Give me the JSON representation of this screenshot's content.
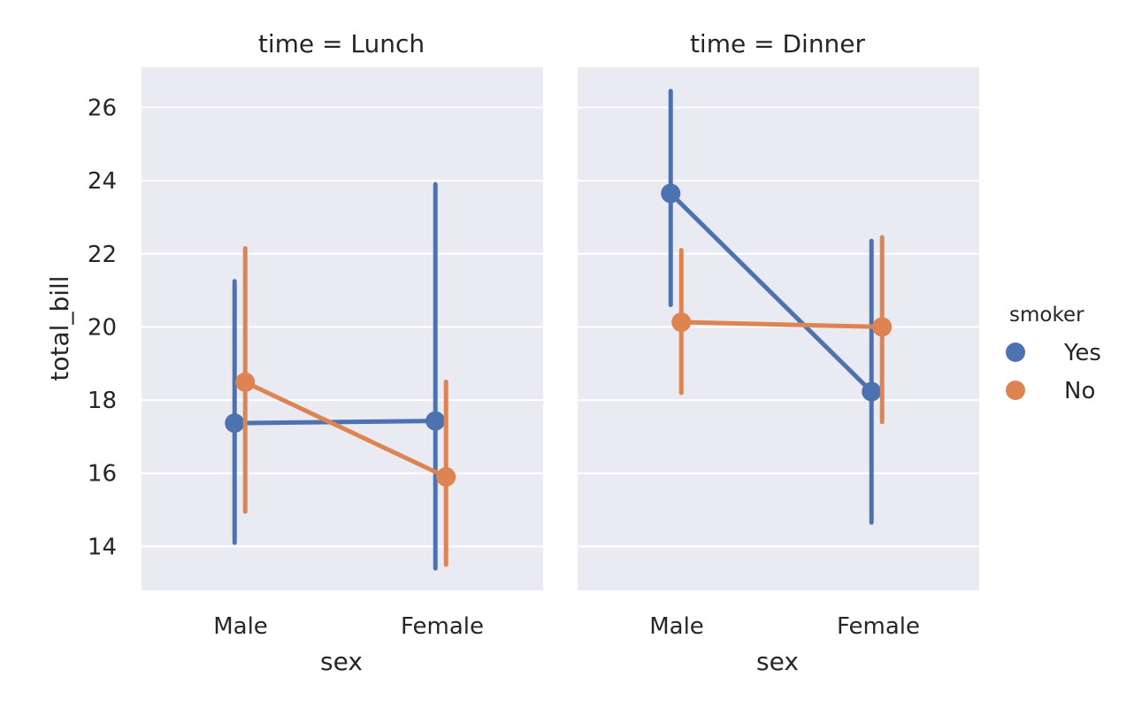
{
  "chart_data": {
    "type": "line",
    "xlabel": "sex",
    "ylabel": "total_bill",
    "categories": [
      "Male",
      "Female"
    ],
    "ylim": [
      12.8,
      27.1
    ],
    "yticks": [
      "14",
      "16",
      "18",
      "20",
      "22",
      "24",
      "26"
    ],
    "grid": true,
    "legend": {
      "title": "smoker",
      "placement": "right",
      "entries": [
        {
          "label": "Yes",
          "color": "#4c72b0"
        },
        {
          "label": "No",
          "color": "#dd8452"
        }
      ]
    },
    "panels": [
      {
        "title": "time = Lunch",
        "series": [
          {
            "name": "Yes",
            "color": "#4c72b0",
            "values": [
              17.37,
              17.43
            ],
            "ci_low": [
              14.1,
              13.4
            ],
            "ci_high": [
              21.25,
              23.9
            ]
          },
          {
            "name": "No",
            "color": "#dd8452",
            "values": [
              18.49,
              15.9
            ],
            "ci_low": [
              14.95,
              13.5
            ],
            "ci_high": [
              22.15,
              18.5
            ]
          }
        ]
      },
      {
        "title": "time = Dinner",
        "series": [
          {
            "name": "Yes",
            "color": "#4c72b0",
            "values": [
              23.65,
              18.23
            ],
            "ci_low": [
              20.6,
              14.65
            ],
            "ci_high": [
              26.45,
              22.35
            ]
          },
          {
            "name": "No",
            "color": "#dd8452",
            "values": [
              20.13,
              20.0
            ],
            "ci_low": [
              18.2,
              17.4
            ],
            "ci_high": [
              22.1,
              22.45
            ]
          }
        ]
      }
    ]
  }
}
